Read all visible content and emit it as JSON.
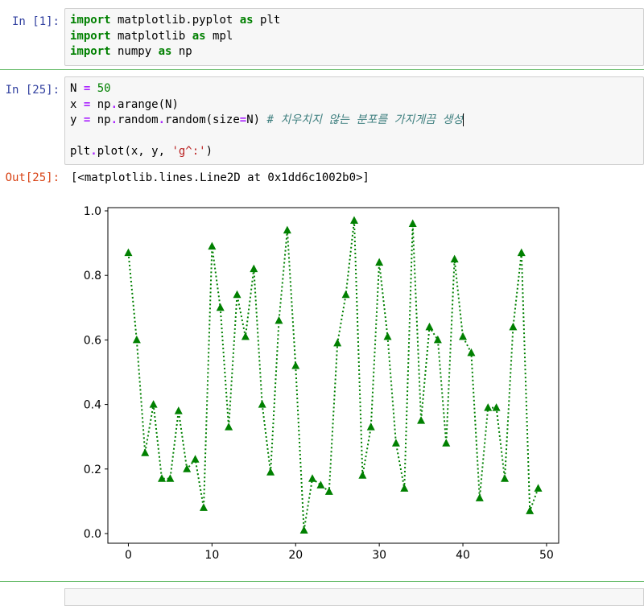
{
  "cells": [
    {
      "prompt": "In [1]:",
      "lines": [
        [
          [
            "kw",
            "import"
          ],
          [
            "plain",
            " matplotlib.pyplot "
          ],
          [
            "kw",
            "as"
          ],
          [
            "plain",
            " plt"
          ]
        ],
        [
          [
            "kw",
            "import"
          ],
          [
            "plain",
            " matplotlib "
          ],
          [
            "kw",
            "as"
          ],
          [
            "plain",
            " mpl"
          ]
        ],
        [
          [
            "kw",
            "import"
          ],
          [
            "plain",
            " numpy "
          ],
          [
            "kw",
            "as"
          ],
          [
            "plain",
            " np"
          ]
        ]
      ]
    },
    {
      "prompt": "In [25]:",
      "lines": [
        [
          [
            "plain",
            "N "
          ],
          [
            "op",
            "="
          ],
          [
            "plain",
            " "
          ],
          [
            "num",
            "50"
          ]
        ],
        [
          [
            "plain",
            "x "
          ],
          [
            "op",
            "="
          ],
          [
            "plain",
            " np"
          ],
          [
            "op",
            "."
          ],
          [
            "plain",
            "arange(N)"
          ]
        ],
        [
          [
            "plain",
            "y "
          ],
          [
            "op",
            "="
          ],
          [
            "plain",
            " np"
          ],
          [
            "op",
            "."
          ],
          [
            "plain",
            "random"
          ],
          [
            "op",
            "."
          ],
          [
            "plain",
            "random(size"
          ],
          [
            "op",
            "="
          ],
          [
            "plain",
            "N) "
          ],
          [
            "cm",
            "# 치우치지 않는 분포를 가지게끔 생성"
          ],
          [
            "cursor",
            ""
          ]
        ],
        [],
        [
          [
            "plain",
            "plt"
          ],
          [
            "op",
            "."
          ],
          [
            "plain",
            "plot(x, y, "
          ],
          [
            "str",
            "'g^:'"
          ],
          [
            "plain",
            ")"
          ]
        ]
      ]
    }
  ],
  "output": {
    "prompt": "Out[25]:",
    "text": "[<matplotlib.lines.Line2D at 0x1dd6c1002b0>]"
  },
  "colors": {
    "line": "#008000",
    "prompt_in": "#303f9f",
    "prompt_out": "#d84315",
    "cell_bg": "#f7f7f7",
    "separator": "#66bb6a"
  },
  "chart_data": {
    "type": "line",
    "format": "g^:",
    "marker": "triangle-up",
    "linestyle": "dotted",
    "color": "#008000",
    "xlim": [
      -2.45,
      51.45
    ],
    "ylim": [
      -0.03,
      1.01
    ],
    "xticks": [
      0,
      10,
      20,
      30,
      40,
      50
    ],
    "yticks": [
      0.0,
      0.2,
      0.4,
      0.6,
      0.8,
      1.0
    ],
    "xtick_labels": [
      "0",
      "10",
      "20",
      "30",
      "40",
      "50"
    ],
    "ytick_labels": [
      "0.0",
      "0.2",
      "0.4",
      "0.6",
      "0.8",
      "1.0"
    ],
    "x": [
      0,
      1,
      2,
      3,
      4,
      5,
      6,
      7,
      8,
      9,
      10,
      11,
      12,
      13,
      14,
      15,
      16,
      17,
      18,
      19,
      20,
      21,
      22,
      23,
      24,
      25,
      26,
      27,
      28,
      29,
      30,
      31,
      32,
      33,
      34,
      35,
      36,
      37,
      38,
      39,
      40,
      41,
      42,
      43,
      44,
      45,
      46,
      47,
      48,
      49
    ],
    "y": [
      0.87,
      0.6,
      0.25,
      0.4,
      0.17,
      0.17,
      0.38,
      0.2,
      0.23,
      0.08,
      0.89,
      0.7,
      0.33,
      0.74,
      0.61,
      0.82,
      0.4,
      0.19,
      0.66,
      0.94,
      0.52,
      0.01,
      0.17,
      0.15,
      0.13,
      0.59,
      0.74,
      0.97,
      0.18,
      0.33,
      0.84,
      0.61,
      0.28,
      0.14,
      0.96,
      0.35,
      0.64,
      0.6,
      0.28,
      0.85,
      0.61,
      0.56,
      0.11,
      0.39,
      0.39,
      0.17,
      0.64,
      0.87,
      0.07,
      0.14
    ]
  }
}
